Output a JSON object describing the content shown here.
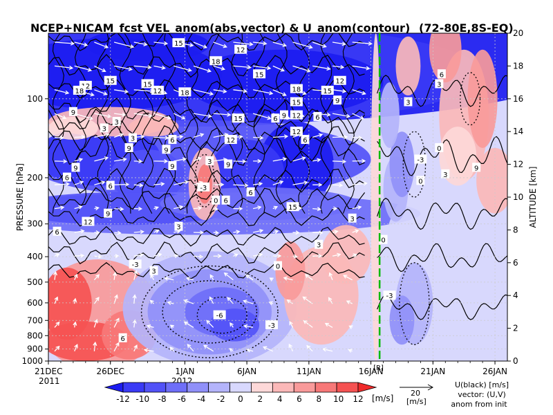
{
  "chart_data": {
    "type": "heatmap",
    "title": "NCEP+NICAM_fcst VEL_anom(abs,vector) & U_anom(contour)",
    "region": "(72-80E,8S-EQ)",
    "ylabel": "PRESSURE [hPa]",
    "ylabel_right": "ALTITUDE [km]",
    "year_left": "2011",
    "year_right": "2012",
    "x_ticks": [
      "21DEC",
      "26DEC",
      "1JAN",
      "6JAN",
      "11JAN",
      "16JAN",
      "21JAN",
      "26JAN"
    ],
    "x_range_days": [
      0,
      37
    ],
    "pressure_ticks": [
      100,
      200,
      300,
      400,
      500,
      600,
      700,
      800,
      900,
      1000
    ],
    "altitude_ticks": [
      0,
      2,
      4,
      6,
      8,
      10,
      12,
      14,
      16,
      18,
      20
    ],
    "ylim_km": [
      0,
      20
    ],
    "forecast_marker": {
      "label": "[R]",
      "date": "19JAN",
      "color": "#00bb00"
    },
    "colorbar": {
      "levels": [
        -12,
        -10,
        -8,
        -6,
        -4,
        -2,
        0,
        2,
        4,
        6,
        8,
        10,
        12
      ],
      "labels": [
        "-12",
        "-10",
        "-8",
        "-6",
        "-4",
        "-2",
        "0",
        "2",
        "4",
        "6",
        "8",
        "10",
        "12"
      ],
      "unit": "[m/s]",
      "colors": [
        "#1c1cf0",
        "#3a3af5",
        "#5252f7",
        "#6e6ef8",
        "#9090f9",
        "#b4b4fb",
        "#d8d8fd",
        "#fdd8d8",
        "#fbb8b8",
        "#f99a9a",
        "#f77878",
        "#f55252",
        "#ef2a2a"
      ]
    },
    "contour_labels": [
      {
        "value": "15",
        "day": 10.5,
        "km": 19.4
      },
      {
        "value": "12",
        "day": 15.5,
        "km": 19.0
      },
      {
        "value": "18",
        "day": 13.5,
        "km": 18.3
      },
      {
        "value": "15",
        "day": 17.0,
        "km": 17.5
      },
      {
        "value": "12",
        "day": 3.0,
        "km": 16.8
      },
      {
        "value": "18",
        "day": 2.5,
        "km": 16.5
      },
      {
        "value": "15",
        "day": 5.0,
        "km": 17.1
      },
      {
        "value": "15",
        "day": 8.0,
        "km": 16.9
      },
      {
        "value": "12",
        "day": 8.8,
        "km": 16.5
      },
      {
        "value": "18",
        "day": 11.0,
        "km": 16.4
      },
      {
        "value": "18",
        "day": 20.0,
        "km": 16.6
      },
      {
        "value": "15",
        "day": 22.5,
        "km": 16.5
      },
      {
        "value": "12",
        "day": 23.5,
        "km": 17.1
      },
      {
        "value": "9",
        "day": 23.3,
        "km": 15.9
      },
      {
        "value": "9",
        "day": 2.0,
        "km": 15.2
      },
      {
        "value": "15",
        "day": 20.0,
        "km": 15.8
      },
      {
        "value": "15",
        "day": 15.3,
        "km": 14.8
      },
      {
        "value": "6",
        "day": 18.3,
        "km": 14.8
      },
      {
        "value": "9",
        "day": 19.0,
        "km": 15.0
      },
      {
        "value": "12",
        "day": 20.0,
        "km": 15.0
      },
      {
        "value": "6",
        "day": 21.7,
        "km": 14.9
      },
      {
        "value": "12",
        "day": 20.0,
        "km": 14.0
      },
      {
        "value": "6",
        "day": 20.7,
        "km": 13.5
      },
      {
        "value": "6",
        "day": 10.0,
        "km": 13.5
      },
      {
        "value": "9",
        "day": 9.5,
        "km": 12.9
      },
      {
        "value": "9",
        "day": 6.5,
        "km": 13.0
      },
      {
        "value": "3",
        "day": 5.5,
        "km": 14.6
      },
      {
        "value": "3",
        "day": 4.5,
        "km": 14.2
      },
      {
        "value": "3",
        "day": 6.8,
        "km": 13.6
      },
      {
        "value": "12",
        "day": 14.7,
        "km": 13.5
      },
      {
        "value": "6",
        "day": 1.5,
        "km": 11.2
      },
      {
        "value": "9",
        "day": 2.2,
        "km": 11.8
      },
      {
        "value": "6",
        "day": 5.0,
        "km": 10.7
      },
      {
        "value": "9",
        "day": 10.0,
        "km": 11.9
      },
      {
        "value": "9",
        "day": 14.5,
        "km": 12.0
      },
      {
        "value": "6",
        "day": 16.3,
        "km": 10.3
      },
      {
        "value": "6",
        "day": 14.3,
        "km": 9.8
      },
      {
        "value": "15",
        "day": 19.7,
        "km": 9.4
      },
      {
        "value": "12",
        "day": 3.2,
        "km": 8.5
      },
      {
        "value": "9",
        "day": 4.8,
        "km": 9.0
      },
      {
        "value": "6",
        "day": 0.7,
        "km": 7.9
      },
      {
        "value": "3",
        "day": 10.5,
        "km": 8.2
      },
      {
        "value": "3",
        "day": 24.5,
        "km": 8.7
      },
      {
        "value": "3",
        "day": 21.8,
        "km": 7.1
      },
      {
        "value": "-3",
        "day": 12.5,
        "km": 10.6
      },
      {
        "value": "0",
        "day": 13.5,
        "km": 9.8
      },
      {
        "value": "3",
        "day": 13.0,
        "km": 12.2
      },
      {
        "value": "-3",
        "day": 7.0,
        "km": 5.9
      },
      {
        "value": "-6",
        "day": 13.8,
        "km": 2.8
      },
      {
        "value": "-3",
        "day": 18.0,
        "km": 2.2
      },
      {
        "value": "6",
        "day": 6.0,
        "km": 1.4
      },
      {
        "value": "3",
        "day": 8.5,
        "km": 5.5
      },
      {
        "value": "0",
        "day": 18.5,
        "km": 5.8
      },
      {
        "value": "0",
        "day": 27.0,
        "km": 7.4
      },
      {
        "value": "-3",
        "day": 27.5,
        "km": 4.0
      },
      {
        "value": "3",
        "day": 32.0,
        "km": 11.4
      },
      {
        "value": "-3",
        "day": 30.0,
        "km": 12.3
      },
      {
        "value": "3",
        "day": 31.5,
        "km": 16.9
      },
      {
        "value": "6",
        "day": 31.7,
        "km": 17.5
      },
      {
        "value": "0",
        "day": 31.5,
        "km": 13.0
      },
      {
        "value": "0",
        "day": 30.0,
        "km": 11.0
      },
      {
        "value": "9",
        "day": 34.5,
        "km": 11.8
      },
      {
        "value": "3",
        "day": 29.0,
        "km": 15.8
      }
    ]
  },
  "legend": {
    "vector_scale_value": "20",
    "vector_scale_unit": "[m/s]",
    "contour_note": "U(black) [m/s]",
    "vector_note": "vector: (U,V)",
    "anom_note": "anom from init"
  }
}
